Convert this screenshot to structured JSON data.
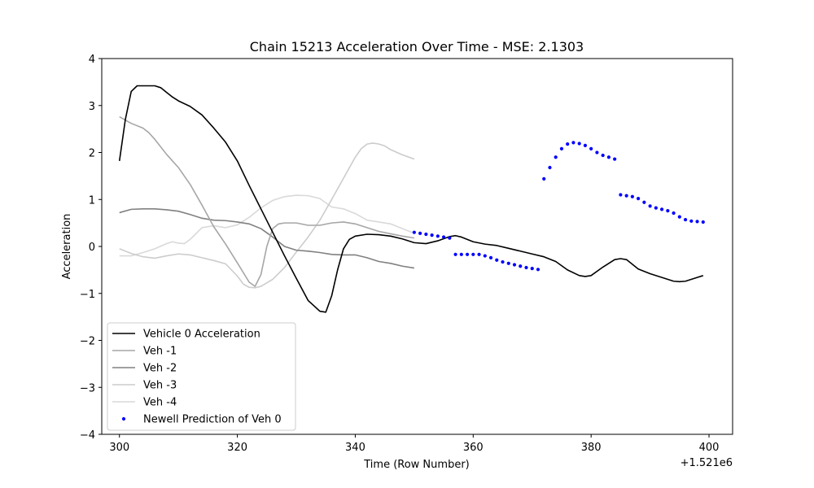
{
  "chart_data": {
    "type": "line",
    "title": "Chain 15213 Acceleration Over Time - MSE: 2.1303",
    "xlabel": "Time (Row Number)",
    "ylabel": "Acceleration",
    "x_offset_label": "+1.521e6",
    "xlim": [
      297,
      404
    ],
    "ylim": [
      -4,
      4
    ],
    "xticks": [
      300,
      320,
      340,
      360,
      380,
      400
    ],
    "yticks": [
      -4,
      -3,
      -2,
      -1,
      0,
      1,
      2,
      3,
      4
    ],
    "grid": false,
    "legend_position": "lower-left",
    "series": [
      {
        "name": "Vehicle 0 Acceleration",
        "kind": "line",
        "color": "#000000",
        "x": [
          300,
          301,
          302,
          303,
          304,
          305,
          306,
          307,
          308,
          309,
          310,
          312,
          314,
          316,
          318,
          320,
          322,
          324,
          326,
          328,
          330,
          332,
          334,
          335,
          336,
          337,
          338,
          339,
          340,
          342,
          344,
          346,
          348,
          350,
          352,
          354,
          356,
          357,
          358,
          360,
          362,
          364,
          366,
          368,
          370,
          372,
          374,
          376,
          378,
          379,
          380,
          382,
          384,
          385,
          386,
          388,
          390,
          392,
          394,
          395,
          396,
          398,
          399
        ],
        "y": [
          1.82,
          2.7,
          3.3,
          3.42,
          3.42,
          3.42,
          3.42,
          3.38,
          3.28,
          3.18,
          3.1,
          2.98,
          2.8,
          2.52,
          2.22,
          1.82,
          1.3,
          0.8,
          0.3,
          -0.2,
          -0.68,
          -1.15,
          -1.38,
          -1.4,
          -1.05,
          -0.5,
          -0.05,
          0.15,
          0.22,
          0.26,
          0.25,
          0.22,
          0.16,
          0.08,
          0.06,
          0.12,
          0.21,
          0.23,
          0.2,
          0.1,
          0.05,
          0.02,
          -0.04,
          -0.1,
          -0.16,
          -0.22,
          -0.32,
          -0.5,
          -0.62,
          -0.64,
          -0.62,
          -0.44,
          -0.28,
          -0.26,
          -0.28,
          -0.48,
          -0.58,
          -0.66,
          -0.74,
          -0.75,
          -0.74,
          -0.66,
          -0.62
        ]
      },
      {
        "name": "Veh -1",
        "kind": "line",
        "color": "#a6a6a6",
        "x": [
          300,
          302,
          304,
          305,
          306,
          308,
          310,
          312,
          314,
          316,
          318,
          320,
          322,
          323,
          324,
          325,
          326,
          327,
          328,
          330,
          332,
          334,
          336,
          338,
          340,
          342,
          344,
          346,
          348,
          350
        ],
        "y": [
          2.76,
          2.62,
          2.52,
          2.42,
          2.28,
          1.96,
          1.68,
          1.32,
          0.88,
          0.42,
          0.05,
          -0.35,
          -0.76,
          -0.85,
          -0.6,
          0.0,
          0.38,
          0.48,
          0.5,
          0.5,
          0.45,
          0.45,
          0.5,
          0.52,
          0.48,
          0.4,
          0.32,
          0.27,
          0.22,
          0.18
        ]
      },
      {
        "name": "Veh -2",
        "kind": "line",
        "color": "#808080",
        "x": [
          300,
          302,
          304,
          306,
          308,
          310,
          312,
          314,
          316,
          318,
          320,
          322,
          324,
          326,
          328,
          330,
          332,
          334,
          336,
          338,
          340,
          342,
          344,
          346,
          348,
          350
        ],
        "y": [
          0.72,
          0.79,
          0.8,
          0.8,
          0.78,
          0.75,
          0.68,
          0.6,
          0.56,
          0.55,
          0.52,
          0.48,
          0.38,
          0.2,
          0.0,
          -0.08,
          -0.1,
          -0.13,
          -0.17,
          -0.18,
          -0.18,
          -0.24,
          -0.32,
          -0.36,
          -0.42,
          -0.46
        ]
      },
      {
        "name": "Veh -3",
        "kind": "line",
        "color": "#cccccc",
        "x": [
          300,
          302,
          304,
          306,
          308,
          310,
          312,
          314,
          316,
          318,
          320,
          321,
          322,
          323,
          324,
          326,
          328,
          330,
          332,
          334,
          336,
          338,
          340,
          341,
          342,
          343,
          344,
          345,
          346,
          348,
          350
        ],
        "y": [
          -0.05,
          -0.15,
          -0.22,
          -0.25,
          -0.2,
          -0.16,
          -0.18,
          -0.24,
          -0.3,
          -0.37,
          -0.63,
          -0.8,
          -0.87,
          -0.88,
          -0.85,
          -0.7,
          -0.45,
          -0.12,
          0.2,
          0.56,
          1.0,
          1.45,
          1.9,
          2.08,
          2.18,
          2.2,
          2.18,
          2.14,
          2.06,
          1.95,
          1.86
        ]
      },
      {
        "name": "Veh -4",
        "kind": "line",
        "color": "#d9d9d9",
        "x": [
          300,
          302,
          304,
          306,
          308,
          309,
          310,
          311,
          312,
          314,
          316,
          318,
          320,
          322,
          324,
          326,
          328,
          330,
          332,
          334,
          336,
          338,
          340,
          342,
          344,
          346,
          348,
          350
        ],
        "y": [
          -0.2,
          -0.2,
          -0.13,
          -0.05,
          0.06,
          0.1,
          0.07,
          0.06,
          0.15,
          0.4,
          0.44,
          0.4,
          0.46,
          0.62,
          0.82,
          0.98,
          1.06,
          1.09,
          1.08,
          1.02,
          0.84,
          0.8,
          0.7,
          0.56,
          0.52,
          0.48,
          0.38,
          0.28
        ]
      },
      {
        "name": "Newell Prediction of Veh 0",
        "kind": "scatter",
        "color": "#0000ff",
        "x": [
          350,
          351,
          352,
          353,
          354,
          355,
          356,
          357,
          358,
          359,
          360,
          361,
          362,
          363,
          364,
          365,
          366,
          367,
          368,
          369,
          370,
          371,
          372,
          373,
          374,
          375,
          376,
          377,
          378,
          379,
          380,
          381,
          382,
          383,
          384,
          385,
          386,
          387,
          388,
          389,
          390,
          391,
          392,
          393,
          394,
          395,
          396,
          397,
          398,
          399
        ],
        "y": [
          0.3,
          0.28,
          0.26,
          0.24,
          0.22,
          0.2,
          0.18,
          -0.17,
          -0.17,
          -0.17,
          -0.17,
          -0.17,
          -0.2,
          -0.24,
          -0.29,
          -0.33,
          -0.36,
          -0.39,
          -0.42,
          -0.45,
          -0.47,
          -0.49,
          1.44,
          1.68,
          1.9,
          2.08,
          2.18,
          2.21,
          2.19,
          2.15,
          2.08,
          2.0,
          1.94,
          1.9,
          1.86,
          1.1,
          1.08,
          1.06,
          1.02,
          0.94,
          0.86,
          0.82,
          0.79,
          0.76,
          0.71,
          0.63,
          0.57,
          0.54,
          0.53,
          0.52
        ]
      }
    ]
  }
}
